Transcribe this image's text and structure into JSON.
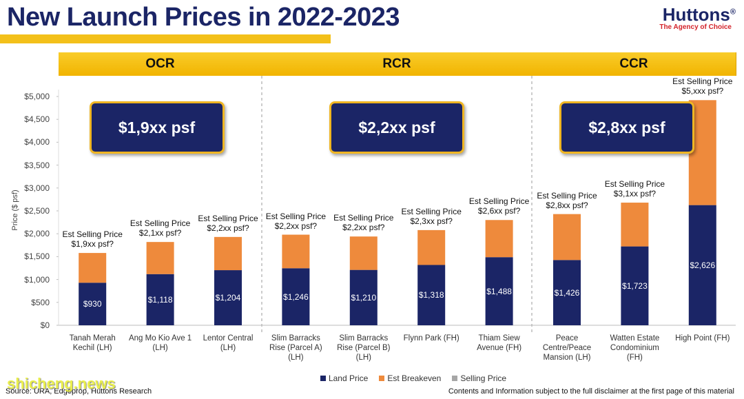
{
  "chart_data": {
    "type": "bar",
    "stacked": true,
    "title": "New Launch Prices in 2022-2023",
    "brand": "Huttons",
    "brand_mark": "®",
    "tagline": "The Agency of Choice",
    "y_label": "Price ($ psf)",
    "regions": [
      {
        "name": "OCR",
        "average": "$1,9xx psf"
      },
      {
        "name": "RCR",
        "average": "$2,2xx psf"
      },
      {
        "name": "CCR",
        "average": "$2,8xx psf"
      }
    ],
    "categories": [
      "Tanah Merah\nKechil (LH)",
      "Ang Mo Kio Ave 1\n(LH)",
      "Lentor Central\n(LH)",
      "Slim Barracks\nRise (Parcel A)\n(LH)",
      "Slim Barracks\nRise (Parcel B)\n(LH)",
      "Flynn Park (FH)",
      "Thiam Siew\nAvenue (FH)",
      "Peace\nCentre/Peace\nMansion (LH)",
      "Watten Estate\nCondominium\n(FH)",
      "High Point (FH)"
    ],
    "series": [
      {
        "name": "Land Price",
        "color": "#1b2566",
        "values": [
          930,
          1118,
          1204,
          1246,
          1210,
          1318,
          1488,
          1426,
          1723,
          2626
        ],
        "value_labels": [
          "$930",
          "$1,118",
          "$1,204",
          "$1,246",
          "$1,210",
          "$1,318",
          "$1,488",
          "$1,426",
          "$1,723",
          "$2,626"
        ]
      },
      {
        "name": "Est Breakeven",
        "color": "#ee8a3c",
        "values": [
          650,
          702,
          726,
          734,
          730,
          762,
          812,
          1004,
          957,
          2294
        ]
      },
      {
        "name": "Selling Price",
        "color": "#a6a6a6",
        "values": [
          null,
          null,
          null,
          null,
          null,
          null,
          null,
          null,
          null,
          null
        ]
      }
    ],
    "annotations": [
      "Est Selling Price\n$1,9xx psf?",
      "Est Selling Price\n$2,1xx psf?",
      "Est Selling Price\n$2,2xx psf?",
      "Est Selling Price\n$2,2xx psf?",
      "Est Selling Price\n$2,2xx psf?",
      "Est Selling Price\n$2,3xx psf?",
      "Est Selling Price\n$2,6xx psf?",
      "Est Selling Price\n$2,8xx psf?",
      "Est Selling Price\n$3,1xx psf?",
      "Est Selling Price\n$5,xxx psf?"
    ],
    "ylim": [
      0,
      5000
    ],
    "yticks": [
      {
        "value": 0,
        "label": "$0"
      },
      {
        "value": 500,
        "label": "$500"
      },
      {
        "value": 1000,
        "label": "$1,000"
      },
      {
        "value": 1500,
        "label": "$1,500"
      },
      {
        "value": 2000,
        "label": "$2,000"
      },
      {
        "value": 2500,
        "label": "$2,500"
      },
      {
        "value": 3000,
        "label": "$3,000"
      },
      {
        "value": 3500,
        "label": "$3,500"
      },
      {
        "value": 4000,
        "label": "$4,000"
      },
      {
        "value": 4500,
        "label": "$4,500"
      },
      {
        "value": 5000,
        "label": "$5,000"
      }
    ],
    "grid": false,
    "legend": "bottom",
    "source": "Source: URA, Edgeprop, Huttons Research",
    "disclaimer": "Contents and Information subject to the full disclaimer at the first page of this material",
    "watermark": "shicheng.news"
  }
}
